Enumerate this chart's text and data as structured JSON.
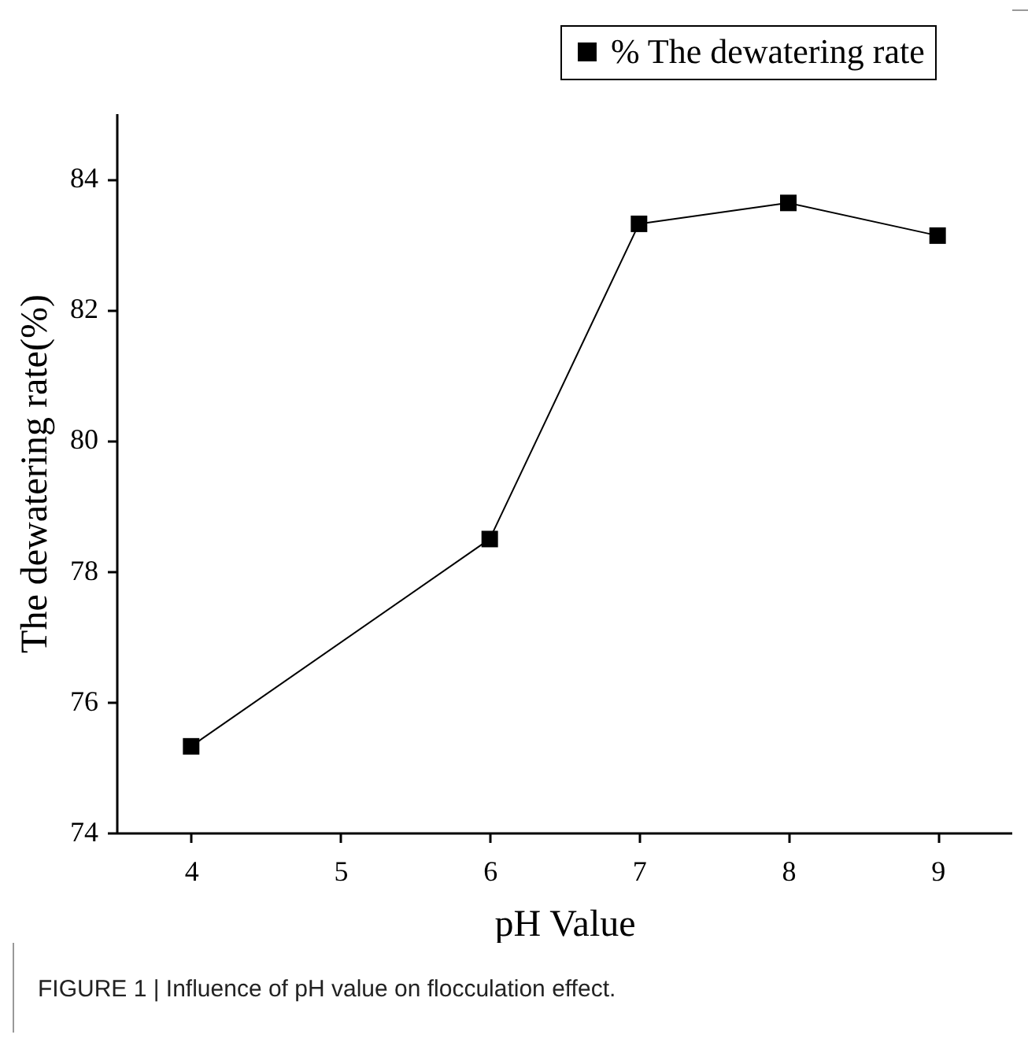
{
  "chart_data": {
    "type": "line",
    "xlabel": "pH Value",
    "ylabel": "The dewatering rate(%)",
    "x": [
      4,
      6,
      7,
      8,
      9
    ],
    "series": [
      {
        "name": "% The dewatering rate",
        "color": "#000000",
        "values": [
          75.32,
          78.49,
          83.31,
          83.63,
          83.13
        ]
      }
    ],
    "xlim": [
      3.5,
      9.5
    ],
    "xticks": [
      4,
      5,
      6,
      7,
      8,
      9
    ],
    "ylim": [
      74,
      85
    ],
    "yticks": [
      74,
      76,
      78,
      80,
      82,
      84
    ],
    "marker": "square",
    "line_style": "solid",
    "legend": "top right",
    "grid": false,
    "annotations": [
      "FIGURE 1 | Influence of pH value on flocculation effect."
    ]
  }
}
